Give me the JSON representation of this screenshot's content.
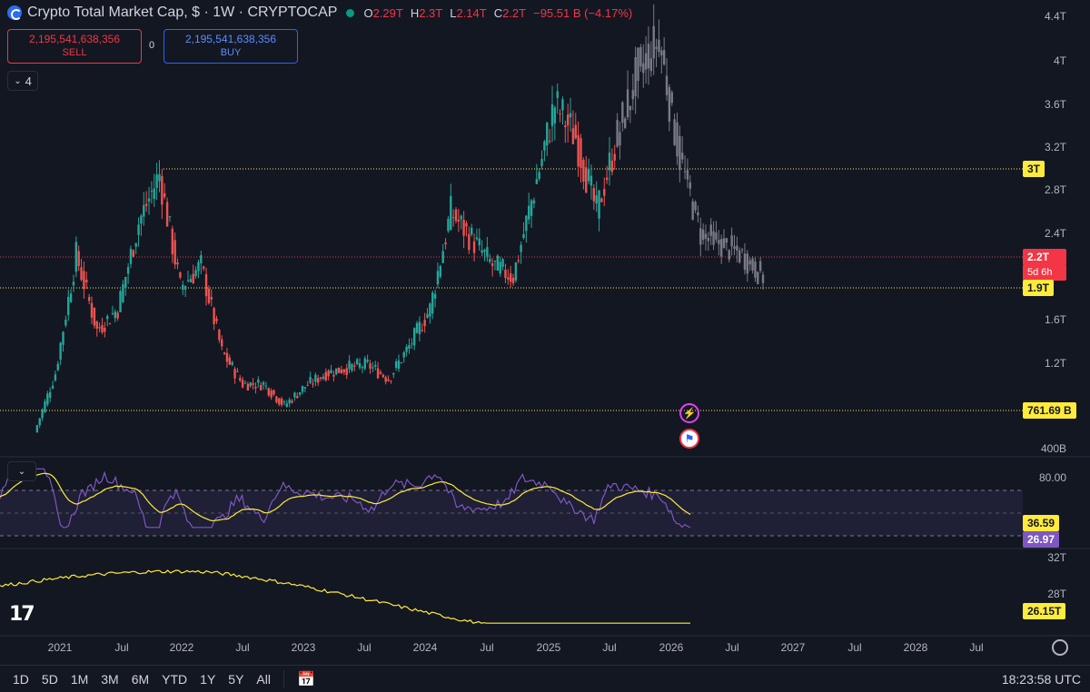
{
  "legend": {
    "title": "Crypto Total Market Cap, $ · 1W · CRYPTOCAP",
    "open_label": "O",
    "open": "2.29T",
    "high_label": "H",
    "high": "2.3T",
    "low_label": "L",
    "low": "2.14T",
    "close_label": "C",
    "close": "2.2T",
    "change": "−95.51 B (−4.17%)"
  },
  "trade": {
    "sell_price": "2,195,541,638,356",
    "sell_label": "SELL",
    "spread": "0",
    "buy_price": "2,195,541,638,356",
    "buy_label": "BUY"
  },
  "indicators_count": "4",
  "price_axis": [
    "4.4T",
    "4T",
    "3.6T",
    "3.2T",
    "2.8T",
    "2.4T",
    "1.6T",
    "1.2T",
    "400B"
  ],
  "price_tags": {
    "level_3t": "3T",
    "current": "2.2T",
    "countdown": "5d 6h",
    "level_19t": "1.9T",
    "level_761b": "761.69 B"
  },
  "rsi_axis": [
    "80.00",
    "32T",
    "28T"
  ],
  "rsi_tags": {
    "ma": "36.59",
    "rsi": "26.97"
  },
  "sub_tags": {
    "value": "26.15T"
  },
  "x_axis": [
    "2021",
    "Jul",
    "2022",
    "Jul",
    "2023",
    "Jul",
    "2024",
    "Jul",
    "2025",
    "Jul",
    "2026",
    "Jul",
    "2027",
    "Jul",
    "2028",
    "Jul"
  ],
  "toolbar": {
    "ranges": [
      "1D",
      "5D",
      "1M",
      "3M",
      "6M",
      "YTD",
      "1Y",
      "5Y",
      "All"
    ],
    "clock": "18:23:58 UTC"
  },
  "colors": {
    "bg": "#131722",
    "up": "#26a69a",
    "down": "#ef5350",
    "ghost": "#787b86",
    "rsi": "#7e57c2",
    "ma": "#ffeb3b"
  },
  "chart_data": {
    "type": "line",
    "title": "Crypto Total Market Cap, $ · 1W · CRYPTOCAP",
    "x": [
      "2020-12",
      "2021-02",
      "2021-04",
      "2021-06",
      "2021-08",
      "2021-10",
      "2021-11",
      "2022-01",
      "2022-03",
      "2022-05",
      "2022-07",
      "2022-09",
      "2022-11",
      "2023-01",
      "2023-03",
      "2023-05",
      "2023-07",
      "2023-09",
      "2023-11",
      "2024-01",
      "2024-03",
      "2024-05",
      "2024-07",
      "2024-09",
      "2024-11",
      "2024-12",
      "2025-02",
      "2025-04",
      "2025-06",
      "2025-08",
      "2025-10",
      "2025-12",
      "2026-02",
      "2026-04",
      "2026-06",
      "2026-08"
    ],
    "series": [
      {
        "values": [
          0.55,
          1.1,
          2.2,
          1.5,
          1.7,
          2.5,
          2.95,
          1.9,
          2.1,
          1.3,
          1.0,
          1.0,
          0.8,
          0.98,
          1.1,
          1.15,
          1.18,
          1.05,
          1.35,
          1.7,
          2.6,
          2.35,
          2.1,
          2.0,
          2.8,
          3.6,
          3.3,
          2.6,
          3.3,
          3.9,
          4.2,
          3.1,
          2.4,
          2.3,
          2.2,
          2.0
        ]
      }
    ],
    "ylim": [
      0.4,
      4.4
    ],
    "yticks": [
      "4.4T",
      "4T",
      "3.6T",
      "3.2T",
      "2.8T",
      "2.4T",
      "1.6T",
      "1.2T",
      "400B"
    ],
    "horizontal_levels": [
      3.0,
      2.2,
      1.9,
      0.76169
    ],
    "grid": false
  }
}
